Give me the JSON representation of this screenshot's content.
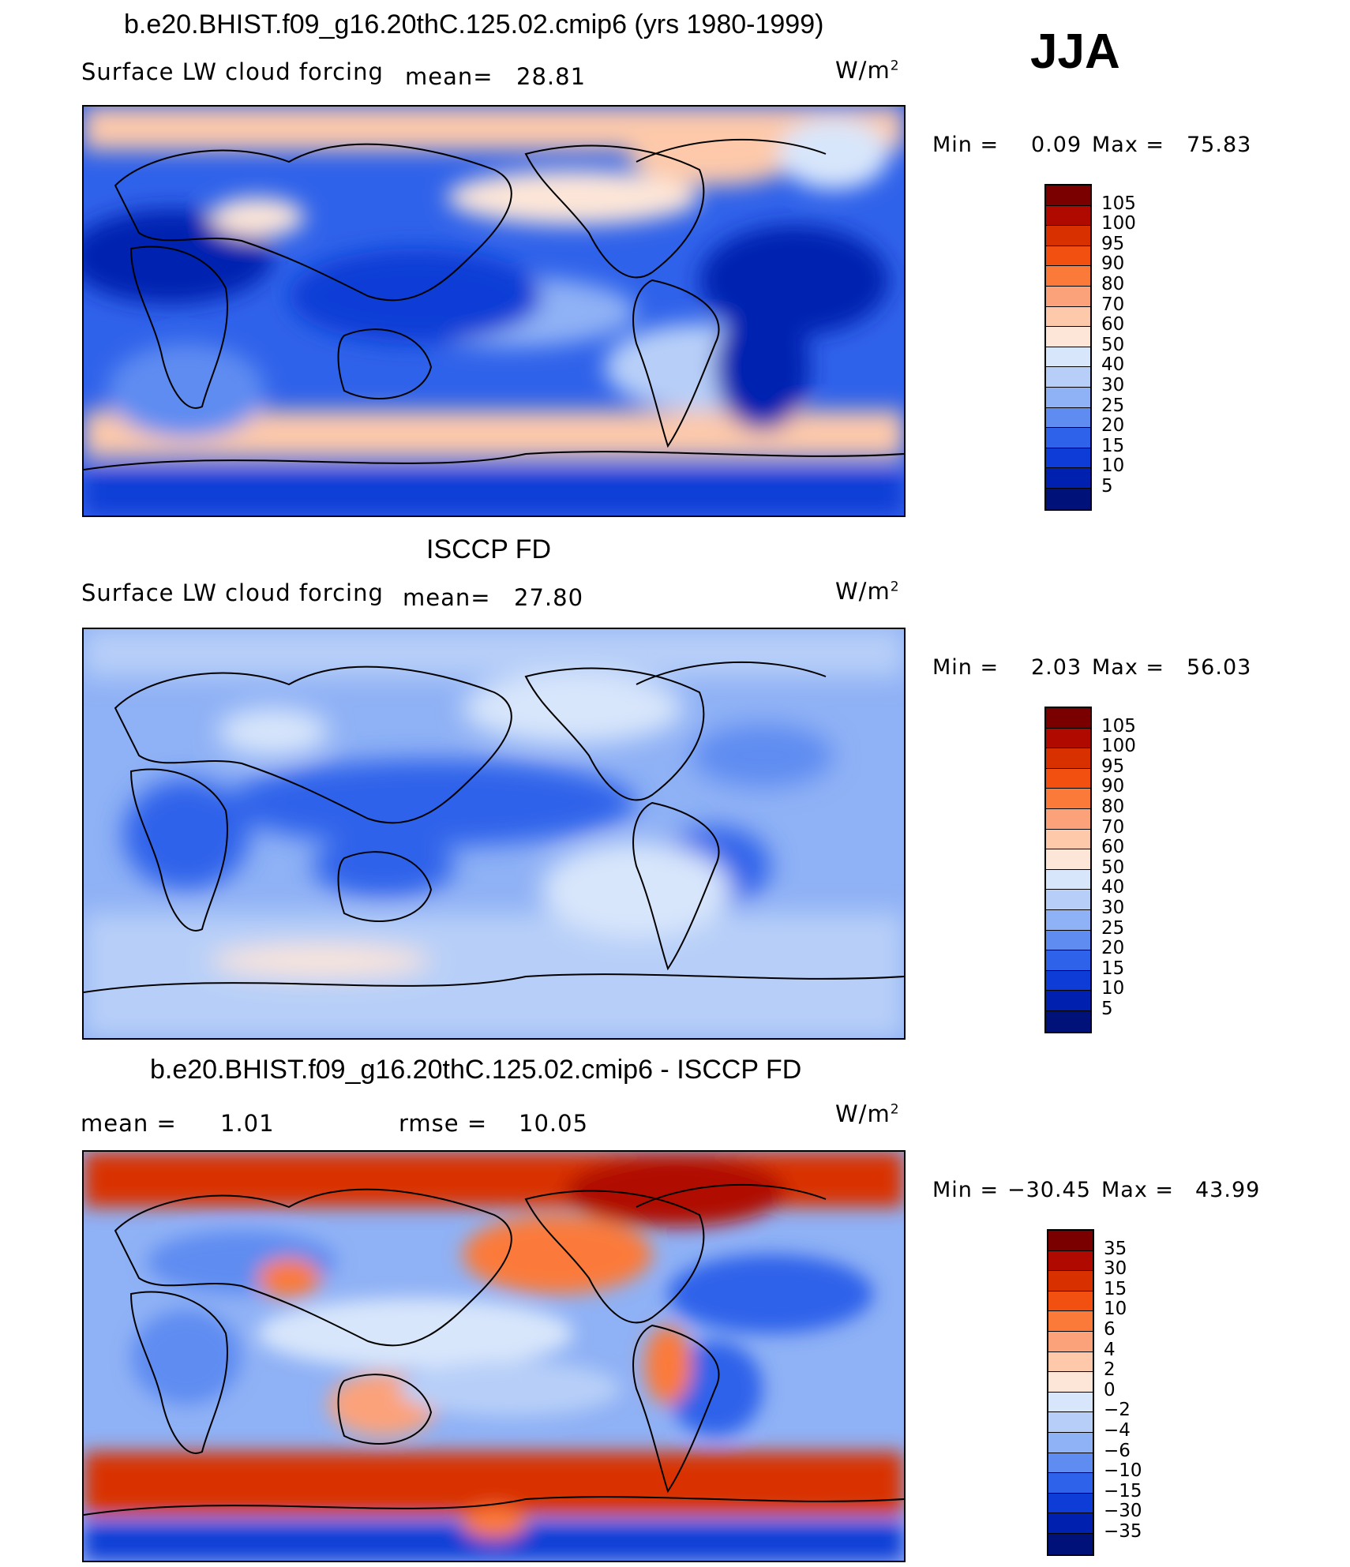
{
  "season": "JJA",
  "units_base": "W/m",
  "units_exp": "2",
  "panels": [
    {
      "title": "b.e20.BHIST.f09_g16.20thC.125.02.cmip6 (yrs 1980-1999)",
      "variable": "Surface LW cloud forcing",
      "mean_label": "mean=",
      "mean_value": "28.81",
      "min_label": "Min =",
      "min_value": "0.09",
      "max_label": "Max =",
      "max_value": "75.83",
      "levels": [
        "105",
        "100",
        "95",
        "90",
        "80",
        "70",
        "60",
        "50",
        "40",
        "30",
        "25",
        "20",
        "15",
        "10",
        "5"
      ]
    },
    {
      "title": "ISCCP FD",
      "variable": "Surface LW cloud forcing",
      "mean_label": "mean=",
      "mean_value": "27.80",
      "min_label": "Min =",
      "min_value": "2.03",
      "max_label": "Max =",
      "max_value": "56.03",
      "levels": [
        "105",
        "100",
        "95",
        "90",
        "80",
        "70",
        "60",
        "50",
        "40",
        "30",
        "25",
        "20",
        "15",
        "10",
        "5"
      ]
    },
    {
      "title": "b.e20.BHIST.f09_g16.20thC.125.02.cmip6 - ISCCP FD",
      "mean_label": "mean =",
      "mean_value": "1.01",
      "rmse_label": "rmse =",
      "rmse_value": "10.05",
      "min_label": "Min =",
      "min_value": "−30.45",
      "max_label": "Max =",
      "max_value": "43.99",
      "levels": [
        "35",
        "30",
        "15",
        "10",
        "6",
        "4",
        "2",
        "0",
        "−2",
        "−4",
        "−6",
        "−10",
        "−15",
        "−30",
        "−35"
      ]
    }
  ],
  "colors": {
    "abs_scale": [
      "#7a0000",
      "#b00a00",
      "#d93000",
      "#f25010",
      "#fb7a3a",
      "#fca27a",
      "#fdc9aa",
      "#fde6d8",
      "#d8e6fb",
      "#b7cff8",
      "#8fb1f5",
      "#5e8cf1",
      "#2f62ea",
      "#0d3dd6",
      "#0020b0",
      "#00127a"
    ],
    "diff_scale": [
      "#7a0000",
      "#b00a00",
      "#d93000",
      "#f25010",
      "#fb7a3a",
      "#fca27a",
      "#fdc9aa",
      "#fde6d8",
      "#d8e6fb",
      "#b7cff8",
      "#8fb1f5",
      "#5e8cf1",
      "#2f62ea",
      "#0d3dd6",
      "#0020b0",
      "#00127a"
    ]
  },
  "chart_data": [
    {
      "type": "heatmap",
      "title": "b.e20.BHIST.f09_g16.20thC.125.02.cmip6 (yrs 1980-1999)",
      "subtitle": "Surface LW cloud forcing",
      "units": "W/m2",
      "mean": 28.81,
      "min": 0.09,
      "max": 75.83,
      "contour_levels": [
        5,
        10,
        15,
        20,
        25,
        30,
        40,
        50,
        60,
        70,
        80,
        90,
        95,
        100,
        105
      ]
    },
    {
      "type": "heatmap",
      "title": "ISCCP FD",
      "subtitle": "Surface LW cloud forcing",
      "units": "W/m2",
      "mean": 27.8,
      "min": 2.03,
      "max": 56.03,
      "contour_levels": [
        5,
        10,
        15,
        20,
        25,
        30,
        40,
        50,
        60,
        70,
        80,
        90,
        95,
        100,
        105
      ]
    },
    {
      "type": "heatmap",
      "title": "b.e20.BHIST.f09_g16.20thC.125.02.cmip6 - ISCCP FD",
      "units": "W/m2",
      "mean": 1.01,
      "rmse": 10.05,
      "min": -30.45,
      "max": 43.99,
      "contour_levels": [
        -35,
        -30,
        -15,
        -10,
        -6,
        -4,
        -2,
        0,
        2,
        4,
        6,
        10,
        15,
        30,
        35
      ]
    }
  ]
}
